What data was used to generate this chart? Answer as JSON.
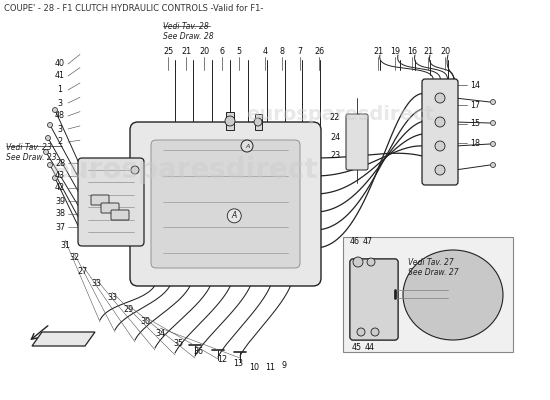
{
  "title": "COUPE' - 28 - F1 CLUTCH HYDRAULIC CONTROLS -Valid for F1-",
  "bg_color": "#ffffff",
  "title_fontsize": 6.0,
  "title_color": "#333333",
  "line_color": "#222222",
  "note1_text": "Vedi Tav. 28\nSee Draw. 28",
  "note2_text": "Vedi Tav. 23\nSee Draw. 23",
  "note3_text": "Vedi Tav. 27\nSee Draw. 27",
  "watermark": "eurosparesdirect",
  "wm_color": "#cccccc",
  "wm_alpha": 0.45
}
